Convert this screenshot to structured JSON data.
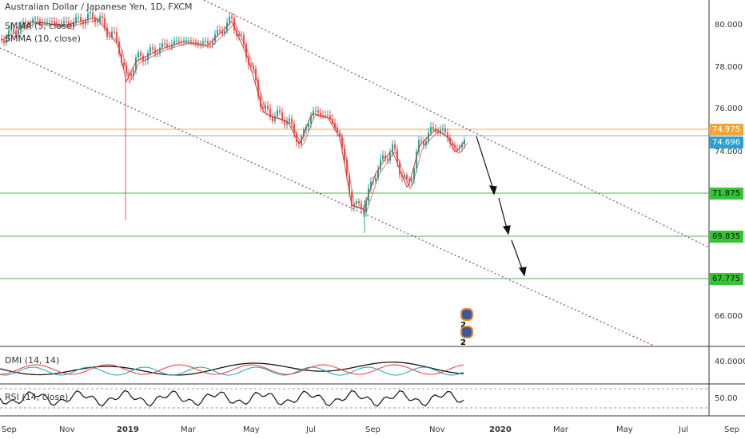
{
  "header": {
    "symbol_title": "Australian Dollar / Japanese Yen, 1D, FXCM",
    "indicator_1": "SMMA (5, close)",
    "indicator_2": "SMMA (10, close)"
  },
  "price_axis": {
    "ticks": [
      "80.000",
      "78.000",
      "76.000",
      "74.000",
      "66.000"
    ]
  },
  "price_tags": {
    "resistance": "74.975",
    "last_price": "74.696",
    "level_1": "71.875",
    "level_2": "69.835",
    "level_3": "67.775"
  },
  "dmi_panel": {
    "label": "DMI (14, 14)",
    "axis_value": "40.0000"
  },
  "rsi_panel": {
    "label": "RSI (14, close)",
    "axis_value": "50.00"
  },
  "time_axis": [
    "Sep",
    "Nov",
    "2019",
    "Mar",
    "May",
    "Jul",
    "Sep",
    "Nov",
    "2020",
    "Mar",
    "May",
    "Jul",
    "Sep"
  ],
  "markers": {
    "count_label": "2"
  },
  "colors": {
    "resistance": "#f7a531",
    "last_price": "#2aa1d1",
    "support": "#4caf50",
    "channel": "#8e3d8e",
    "bull": "#26a69a",
    "bear": "#ef5350"
  }
}
